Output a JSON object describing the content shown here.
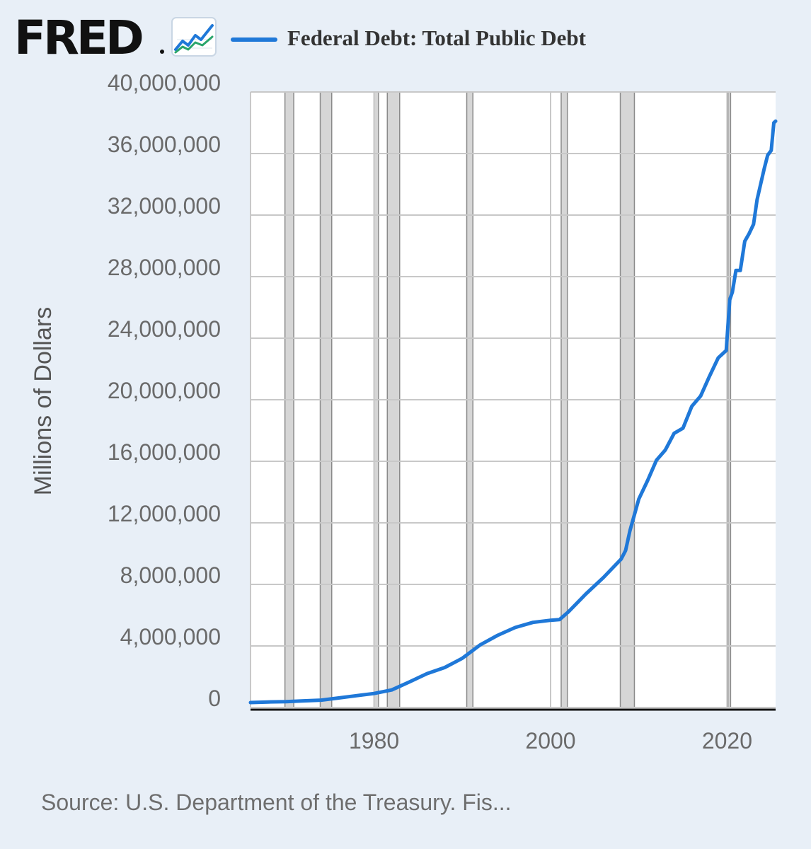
{
  "header": {
    "logo_text": "FRED",
    "logo_icon": "fred-chart-trend-icon",
    "legend_label": "Federal Debt: Total Public Debt"
  },
  "colors": {
    "series": "#1f78d8",
    "background": "#e8eff7",
    "plot_background": "#ffffff",
    "recession_band": "#b5b5b5",
    "grid": "#c8c8c8",
    "axis_text": "#6a6a6a"
  },
  "source": "Source: U.S. Department of the Treasury. Fis...",
  "chart_data": {
    "type": "line",
    "title": "Federal Debt: Total Public Debt",
    "xlabel": "",
    "ylabel": "Millions of Dollars",
    "xlim": [
      1966,
      2025.5
    ],
    "ylim": [
      0,
      40000000
    ],
    "x_ticks": [
      1980,
      2000,
      2020
    ],
    "x_tick_labels": [
      "1980",
      "2000",
      "2020"
    ],
    "y_ticks": [
      0,
      4000000,
      8000000,
      12000000,
      16000000,
      20000000,
      24000000,
      28000000,
      32000000,
      36000000,
      40000000
    ],
    "y_tick_labels": [
      "0",
      "4,000,000",
      "8,000,000",
      "12,000,000",
      "16,000,000",
      "20,000,000",
      "24,000,000",
      "28,000,000",
      "32,000,000",
      "36,000,000",
      "40,000,000"
    ],
    "grid": true,
    "recessions": [
      [
        1969.9,
        1970.9
      ],
      [
        1973.9,
        1975.2
      ],
      [
        1980.0,
        1980.5
      ],
      [
        1981.5,
        1982.9
      ],
      [
        1990.5,
        1991.2
      ],
      [
        2001.2,
        2001.9
      ],
      [
        2007.9,
        2009.5
      ],
      [
        2020.1,
        2020.4
      ]
    ],
    "series": [
      {
        "name": "Federal Debt: Total Public Debt",
        "x": [
          1966.0,
          1968.0,
          1970.0,
          1972.0,
          1974.0,
          1976.0,
          1978.0,
          1980.0,
          1982.0,
          1984.0,
          1986.0,
          1988.0,
          1990.0,
          1992.0,
          1994.0,
          1996.0,
          1998.0,
          2000.0,
          2001.0,
          2002.0,
          2004.0,
          2006.0,
          2008.0,
          2008.5,
          2009.0,
          2010.0,
          2011.0,
          2012.0,
          2013.0,
          2014.0,
          2015.0,
          2016.0,
          2017.0,
          2018.0,
          2019.0,
          2019.9,
          2020.3,
          2020.6,
          2021.0,
          2021.5,
          2022.0,
          2022.5,
          2023.0,
          2023.4,
          2023.8,
          2024.2,
          2024.6,
          2025.0,
          2025.3,
          2025.5
        ],
        "values": [
          320000,
          360000,
          380000,
          430000,
          480000,
          620000,
          770000,
          910000,
          1140000,
          1660000,
          2200000,
          2600000,
          3200000,
          4060000,
          4690000,
          5200000,
          5530000,
          5670000,
          5710000,
          6200000,
          7380000,
          8450000,
          9650000,
          10200000,
          11500000,
          13550000,
          14760000,
          16070000,
          16730000,
          17820000,
          18150000,
          19570000,
          20240000,
          21520000,
          22720000,
          23200000,
          26500000,
          27000000,
          28400000,
          28400000,
          30300000,
          30800000,
          31400000,
          33000000,
          34000000,
          35000000,
          35900000,
          36200000,
          38000000,
          38100000
        ]
      }
    ]
  }
}
